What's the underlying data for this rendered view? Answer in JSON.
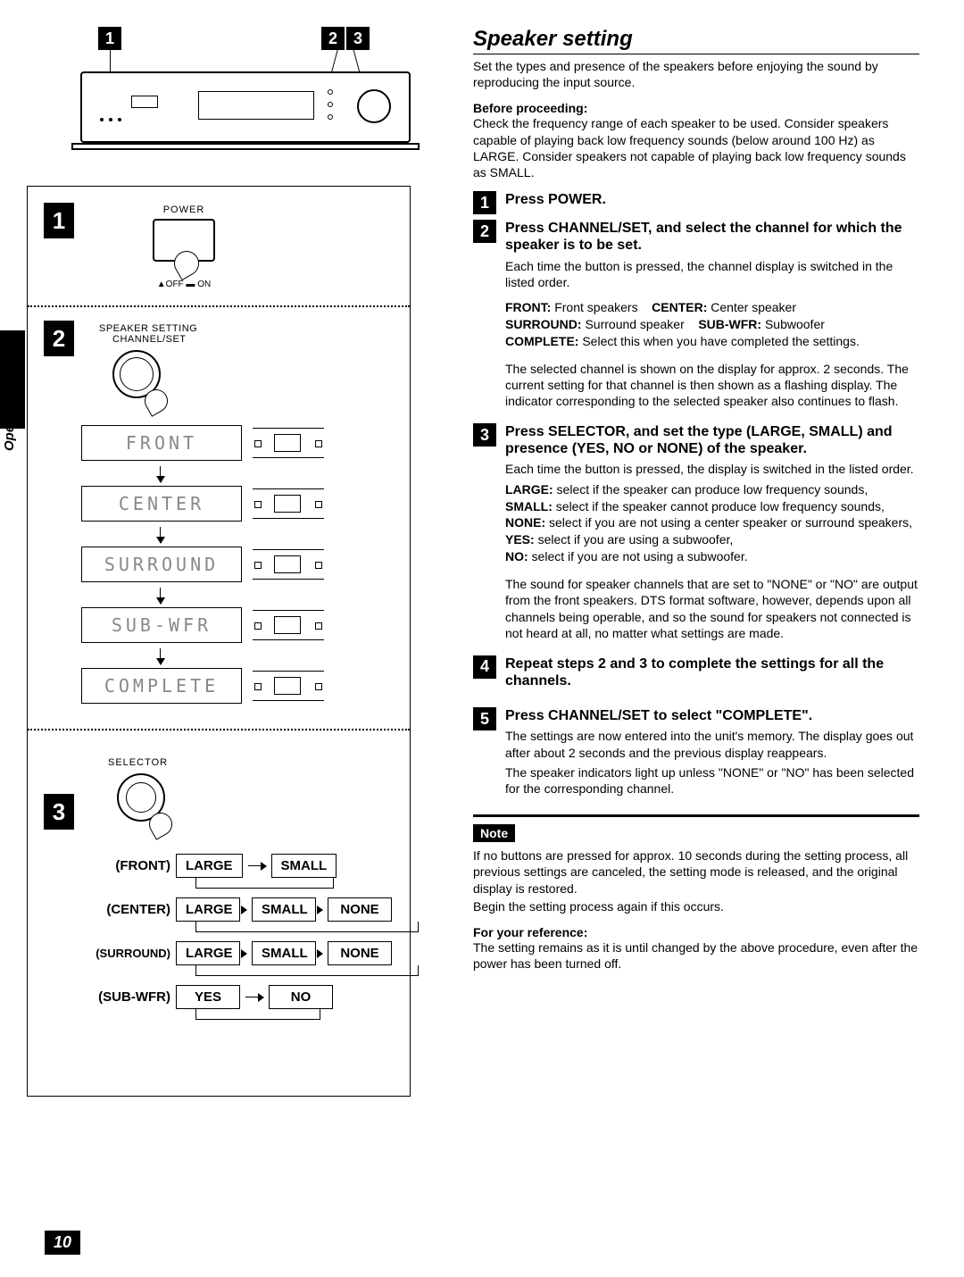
{
  "page_number": "10",
  "side_text": "Operation",
  "title": "Speaker setting",
  "intro": "Set the types and presence of the speakers before enjoying the sound by reproducing the input source.",
  "before_head": "Before proceeding:",
  "before_text": "Check the frequency range of each speaker to be used. Consider speakers capable of playing back low frequency sounds (below around 100 Hz) as LARGE. Consider speakers not capable of playing back low frequency sounds as SMALL.",
  "steps": {
    "s1_head": "Press POWER.",
    "s2_head": "Press CHANNEL/SET, and select the channel for which the speaker is to be set.",
    "s2_a": "Each time the button is pressed, the channel display is switched in the listed order.",
    "s2_def_cols": [
      {
        "k": "FRONT:",
        "v": "Front speakers"
      },
      {
        "k": "CENTER:",
        "v": "Center speaker"
      }
    ],
    "s2_def_cols2": [
      {
        "k": "SURROUND:",
        "v": "Surround speaker"
      },
      {
        "k": "SUB-WFR:",
        "v": "Subwoofer"
      }
    ],
    "s2_complete_k": "COMPLETE:",
    "s2_complete_v": "Select this when you have completed the settings.",
    "s2_b": "The selected channel is shown on the display for approx. 2 seconds. The current setting for that channel is then shown as a flashing display. The indicator corresponding to the selected speaker also continues to flash.",
    "s3_head": "Press SELECTOR, and set the type (LARGE, SMALL) and presence (YES, NO or NONE) of the speaker.",
    "s3_a": "Each time the button is pressed, the display is switched in the listed order.",
    "s3_defs": [
      {
        "k": "LARGE:",
        "v": "select if the speaker can produce low frequency sounds,"
      },
      {
        "k": "SMALL:",
        "v": "select if the speaker cannot produce low frequency sounds,"
      },
      {
        "k": "NONE:",
        "v": "select if you are not using a center speaker or surround speakers,"
      },
      {
        "k": "YES:",
        "v": "select if you are using a subwoofer,"
      },
      {
        "k": "NO:",
        "v": "select if you are not using a subwoofer."
      }
    ],
    "s3_b": "The sound for speaker channels that are set to \"NONE\" or \"NO\" are output from the front speakers. DTS format software, however, depends upon all channels being operable, and so the sound for speakers not connected is not heard at all, no matter what settings are made.",
    "s4_head": "Repeat steps 2 and 3 to complete the settings for all the channels.",
    "s5_head": "Press CHANNEL/SET to select \"COMPLETE\".",
    "s5_a": "The settings are now entered into the unit's memory. The display goes out after about 2 seconds and the previous display reappears.",
    "s5_b": "The speaker indicators light up unless \"NONE\" or \"NO\" has been selected for the corresponding channel."
  },
  "note_label": "Note",
  "note_text": "If no buttons are pressed for approx. 10 seconds during the setting process, all previous settings are canceled, the setting mode is released, and the original display is restored.",
  "note_text2": "Begin the setting process again if this occurs.",
  "ref_head": "For your reference:",
  "ref_text": "The setting remains as it is until changed by the above procedure, even after the power has been turned off.",
  "left": {
    "callouts": {
      "c1": "1",
      "c2": "2",
      "c3": "3"
    },
    "power": "POWER",
    "offon": "▲OFF ▬ ON",
    "ss": "SPEAKER SETTING",
    "cs": "CHANNEL/SET",
    "sel": "SELECTOR",
    "channels": [
      "FRONT",
      "CENTER",
      "SURROUND",
      "SUB-WFR",
      "COMPLETE"
    ],
    "flows": [
      {
        "label": "FRONT",
        "boxes": [
          "LARGE",
          "SMALL"
        ]
      },
      {
        "label": "CENTER",
        "boxes": [
          "LARGE",
          "SMALL",
          "NONE"
        ]
      },
      {
        "label": "SURROUND",
        "boxes": [
          "LARGE",
          "SMALL",
          "NONE"
        ]
      },
      {
        "label": "SUB-WFR",
        "boxes": [
          "YES",
          "NO"
        ]
      }
    ]
  }
}
